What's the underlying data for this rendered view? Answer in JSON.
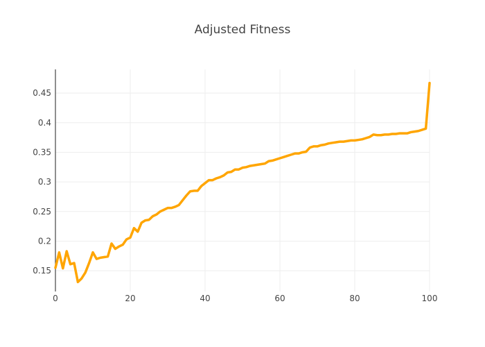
{
  "chart_data": {
    "type": "line",
    "title": "Adjusted Fitness",
    "xlabel": "",
    "ylabel": "",
    "xlim": [
      0,
      100
    ],
    "ylim": [
      0.115,
      0.49
    ],
    "x_ticks": [
      0,
      20,
      40,
      60,
      80,
      100
    ],
    "x_tick_labels": [
      "0",
      "20",
      "40",
      "60",
      "80",
      "100"
    ],
    "y_ticks": [
      0.15,
      0.2,
      0.25,
      0.3,
      0.35,
      0.4,
      0.45
    ],
    "y_tick_labels": [
      "0.15",
      "0.2",
      "0.25",
      "0.3",
      "0.35",
      "0.4",
      "0.45"
    ],
    "grid": true,
    "legend": "none",
    "line_color": "#ffa500",
    "series": [
      {
        "x": [
          0,
          1,
          2,
          3,
          4,
          5,
          6,
          7,
          8,
          9,
          10,
          11,
          12,
          13,
          14,
          15,
          16,
          17,
          18,
          19,
          20,
          21,
          22,
          23,
          24,
          25,
          26,
          27,
          28,
          29,
          30,
          31,
          32,
          33,
          34,
          35,
          36,
          37,
          38,
          39,
          40,
          41,
          42,
          43,
          44,
          45,
          46,
          47,
          48,
          49,
          50,
          51,
          52,
          53,
          54,
          55,
          56,
          57,
          58,
          59,
          60,
          61,
          62,
          63,
          64,
          65,
          66,
          67,
          68,
          69,
          70,
          71,
          72,
          73,
          74,
          75,
          76,
          77,
          78,
          79,
          80,
          81,
          82,
          83,
          84,
          85,
          86,
          87,
          88,
          89,
          90,
          91,
          92,
          93,
          94,
          95,
          96,
          97,
          98,
          99,
          100
        ],
        "values": [
          0.155,
          0.181,
          0.154,
          0.183,
          0.161,
          0.163,
          0.131,
          0.137,
          0.147,
          0.163,
          0.181,
          0.17,
          0.172,
          0.173,
          0.174,
          0.196,
          0.187,
          0.191,
          0.194,
          0.203,
          0.206,
          0.222,
          0.216,
          0.231,
          0.235,
          0.236,
          0.242,
          0.245,
          0.25,
          0.253,
          0.256,
          0.256,
          0.258,
          0.261,
          0.269,
          0.277,
          0.284,
          0.285,
          0.285,
          0.293,
          0.298,
          0.303,
          0.303,
          0.306,
          0.308,
          0.311,
          0.316,
          0.317,
          0.321,
          0.321,
          0.324,
          0.325,
          0.327,
          0.328,
          0.329,
          0.33,
          0.331,
          0.335,
          0.336,
          0.338,
          0.34,
          0.342,
          0.344,
          0.346,
          0.348,
          0.348,
          0.35,
          0.351,
          0.358,
          0.36,
          0.36,
          0.362,
          0.363,
          0.365,
          0.366,
          0.367,
          0.368,
          0.368,
          0.369,
          0.37,
          0.37,
          0.371,
          0.372,
          0.374,
          0.376,
          0.38,
          0.379,
          0.379,
          0.38,
          0.38,
          0.381,
          0.381,
          0.382,
          0.382,
          0.382,
          0.384,
          0.385,
          0.386,
          0.388,
          0.39,
          0.467
        ]
      }
    ]
  }
}
